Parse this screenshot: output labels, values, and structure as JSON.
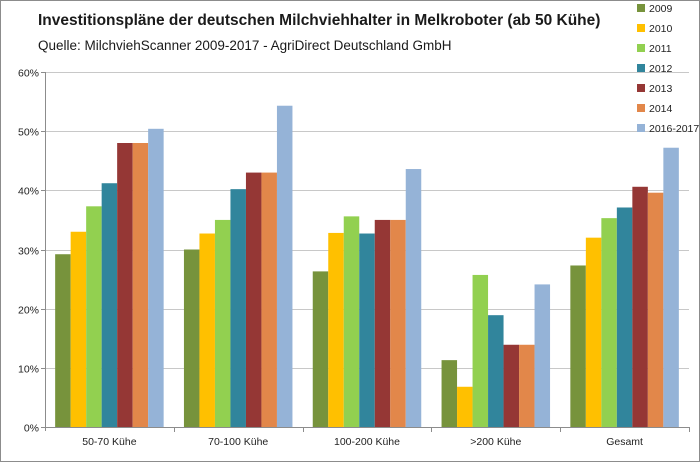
{
  "chart_data": {
    "type": "bar",
    "title": "Investitionspläne der deutschen Milchviehhalter in Melkroboter (ab 50 Kühe)",
    "subtitle": "Quelle: MilchviehScanner 2009-2017 - AgriDirect Deutschland GmbH",
    "categories": [
      "50-70 Kühe",
      "70-100 Kühe",
      "100-200 Kühe",
      ">200 Kühe",
      "Gesamt"
    ],
    "ylim": [
      0,
      60
    ],
    "yticks": [
      0,
      10,
      20,
      30,
      40,
      50,
      60
    ],
    "ytick_labels": [
      "0%",
      "10%",
      "20%",
      "30%",
      "40%",
      "50%",
      "60%"
    ],
    "grid": true,
    "legend_position": "right",
    "series": [
      {
        "name": "2009",
        "color": "#77933c",
        "values": [
          29.2,
          30.0,
          26.3,
          11.3,
          27.3
        ]
      },
      {
        "name": "2010",
        "color": "#ffc000",
        "values": [
          33.0,
          32.7,
          32.8,
          6.8,
          32.0
        ]
      },
      {
        "name": "2011",
        "color": "#92d050",
        "values": [
          37.3,
          35.0,
          35.6,
          25.7,
          35.3
        ]
      },
      {
        "name": "2012",
        "color": "#31859c",
        "values": [
          41.2,
          40.2,
          32.7,
          18.9,
          37.1
        ]
      },
      {
        "name": "2013",
        "color": "#953735",
        "values": [
          48.0,
          43.0,
          35.0,
          13.9,
          40.6
        ]
      },
      {
        "name": "2014",
        "color": "#e2874a",
        "values": [
          48.0,
          43.0,
          35.0,
          13.9,
          39.6
        ]
      },
      {
        "name": "2016-2017",
        "color": "#95b3d7",
        "values": [
          50.4,
          54.3,
          43.6,
          24.1,
          47.2
        ]
      }
    ]
  }
}
